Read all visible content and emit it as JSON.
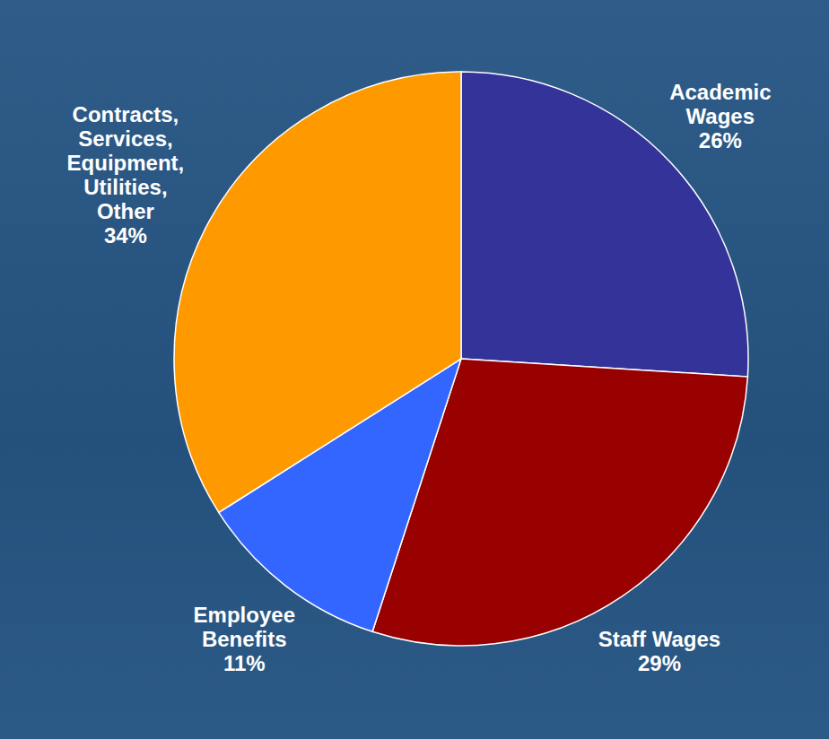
{
  "chart_data": {
    "type": "pie",
    "categories": [
      "Academic Wages",
      "Staff Wages",
      "Employee Benefits",
      "Contracts, Services, Equipment, Utilities, Other"
    ],
    "values": [
      26,
      29,
      11,
      34
    ],
    "value_labels": [
      "26%",
      "29%",
      "11%",
      "34%"
    ],
    "colors": [
      "#333399",
      "#990000",
      "#3366ff",
      "#ff9900"
    ],
    "data_labels": true
  }
}
